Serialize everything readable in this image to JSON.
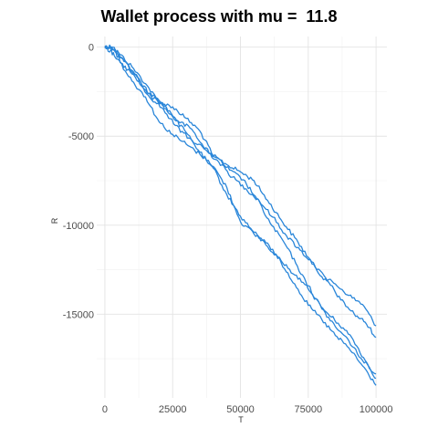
{
  "chart_data": {
    "type": "line",
    "title": "Wallet process with mu =  11.8",
    "xlabel": "T",
    "ylabel": "R",
    "xlim": [
      -3000,
      104000
    ],
    "ylim": [
      -19700,
      600
    ],
    "x_ticks": [
      0,
      25000,
      50000,
      75000,
      100000
    ],
    "x_tick_labels": [
      "0",
      "25000",
      "50000",
      "75000",
      "100000"
    ],
    "y_ticks": [
      0,
      -5000,
      -10000,
      -15000
    ],
    "y_tick_labels": [
      "0",
      "-5000",
      "-10000",
      "-15000"
    ],
    "grid": true,
    "line_color": "#2a86d9",
    "series": [
      {
        "x": [
          0,
          2000,
          5000,
          10000,
          15000,
          20000,
          25000,
          30000,
          35000,
          40000,
          45000,
          50000,
          55000,
          60000,
          65000,
          70000,
          75000,
          80000,
          85000,
          90000,
          95000,
          100000
        ],
        "values": [
          0,
          50,
          -300,
          -1100,
          -2050,
          -3100,
          -3350,
          -4000,
          -4700,
          -6100,
          -6600,
          -7000,
          -7500,
          -8600,
          -9700,
          -10700,
          -11800,
          -12900,
          -13300,
          -13950,
          -14450,
          -15650
        ]
      },
      {
        "x": [
          0,
          3000,
          7000,
          12000,
          17000,
          22000,
          27000,
          32000,
          37000,
          42000,
          47000,
          52000,
          57000,
          62000,
          67000,
          72000,
          77000,
          82000,
          87000,
          92000,
          96000,
          100000
        ],
        "values": [
          0,
          0,
          -800,
          -1700,
          -2750,
          -3300,
          -4150,
          -4600,
          -5750,
          -6450,
          -7300,
          -7950,
          -8650,
          -9550,
          -10600,
          -11400,
          -12200,
          -13100,
          -14200,
          -15000,
          -15450,
          -16300
        ]
      },
      {
        "x": [
          0,
          2500,
          6000,
          11000,
          16000,
          21000,
          26000,
          31000,
          36000,
          41000,
          46000,
          51000,
          56000,
          61000,
          66000,
          71000,
          76000,
          81000,
          86000,
          91000,
          96000,
          100000
        ],
        "values": [
          0,
          0,
          -600,
          -1500,
          -2700,
          -3400,
          -4400,
          -5100,
          -5600,
          -6200,
          -6900,
          -7450,
          -8500,
          -9900,
          -10950,
          -12300,
          -13800,
          -14800,
          -15500,
          -16300,
          -17600,
          -18600
        ]
      },
      {
        "x": [
          0,
          3000,
          6000,
          10000,
          15000,
          20000,
          25000,
          30000,
          35000,
          40000,
          45000,
          50000,
          55000,
          60000,
          65000,
          70000,
          75000,
          80000,
          85000,
          90000,
          95000,
          100000
        ],
        "values": [
          0,
          -100,
          -900,
          -1500,
          -2400,
          -3000,
          -3900,
          -4800,
          -5900,
          -6800,
          -8300,
          -9500,
          -10400,
          -11200,
          -12000,
          -12800,
          -13400,
          -14700,
          -15700,
          -16500,
          -17600,
          -18350
        ]
      },
      {
        "x": [
          0,
          2000,
          5000,
          10000,
          15000,
          20000,
          25000,
          30000,
          35000,
          40000,
          45000,
          50000,
          55000,
          60000,
          65000,
          70000,
          75000,
          80000,
          85000,
          90000,
          95000,
          100000
        ],
        "values": [
          0,
          -200,
          -700,
          -1900,
          -2800,
          -4200,
          -4900,
          -5450,
          -6000,
          -6700,
          -7900,
          -9800,
          -10500,
          -11000,
          -12100,
          -13300,
          -14500,
          -15300,
          -16200,
          -16900,
          -17900,
          -19000
        ]
      }
    ]
  }
}
